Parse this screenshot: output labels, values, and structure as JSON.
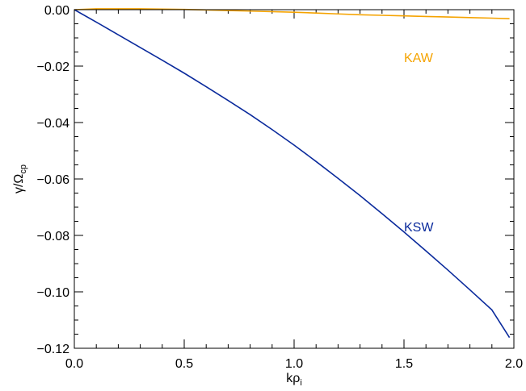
{
  "chart_data": {
    "type": "line",
    "xlabel": "kρ",
    "xlabel_sub": "i",
    "ylabel": "γ/Ω",
    "ylabel_sub": "cp",
    "xlim": [
      0.0,
      2.0
    ],
    "ylim": [
      -0.12,
      0.0
    ],
    "x_ticks": [
      0.0,
      0.5,
      1.0,
      1.5,
      2.0
    ],
    "x_tick_labels": [
      "0.0",
      "0.5",
      "1.0",
      "1.5",
      "2.0"
    ],
    "y_ticks": [
      0.0,
      -0.02,
      -0.04,
      -0.06,
      -0.08,
      -0.1,
      -0.12
    ],
    "y_tick_labels": [
      "0.00",
      "−0.02",
      "−0.04",
      "−0.06",
      "−0.08",
      "−0.10",
      "−0.12"
    ],
    "grid": false,
    "legend": "none",
    "series": [
      {
        "name": "KAW",
        "color": "#f5a300",
        "label_at": [
          1.5,
          -0.0185
        ],
        "x": [
          0.0,
          0.1,
          0.2,
          0.3,
          0.4,
          0.5,
          0.6,
          0.7,
          0.8,
          0.9,
          1.0,
          1.1,
          1.2,
          1.3,
          1.4,
          1.5,
          1.6,
          1.7,
          1.8,
          1.9,
          1.98
        ],
        "y": [
          0.0,
          0.0003,
          0.0003,
          0.0003,
          0.0002,
          0.0001,
          -0.0001,
          -0.0003,
          -0.0005,
          -0.0007,
          -0.0009,
          -0.0012,
          -0.0015,
          -0.0018,
          -0.002,
          -0.0022,
          -0.0024,
          -0.0026,
          -0.0028,
          -0.003,
          -0.0032
        ]
      },
      {
        "name": "KSW",
        "color": "#0a2a9c",
        "label_at": [
          1.5,
          -0.0785
        ],
        "x": [
          0.0,
          0.1,
          0.2,
          0.3,
          0.4,
          0.5,
          0.6,
          0.7,
          0.8,
          0.9,
          1.0,
          1.1,
          1.2,
          1.3,
          1.4,
          1.5,
          1.6,
          1.7,
          1.8,
          1.9,
          1.98
        ],
        "y": [
          0.0,
          -0.0044,
          -0.0089,
          -0.0134,
          -0.0179,
          -0.0225,
          -0.0273,
          -0.0322,
          -0.0372,
          -0.0425,
          -0.048,
          -0.0538,
          -0.0598,
          -0.0659,
          -0.0723,
          -0.0788,
          -0.0855,
          -0.0923,
          -0.0993,
          -0.1064,
          -0.1162
        ]
      }
    ]
  }
}
